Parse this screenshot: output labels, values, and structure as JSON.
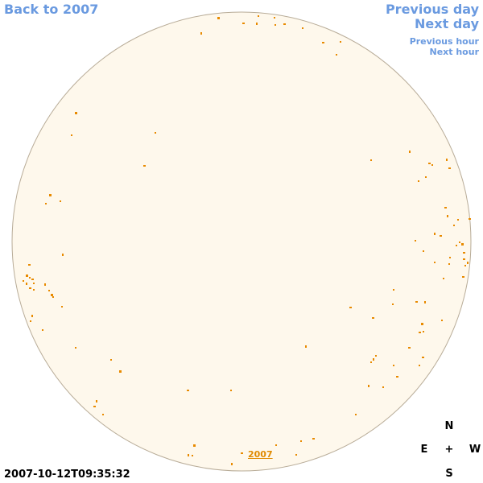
{
  "nav": {
    "back": "Back to 2007",
    "previous_day": "Previous day",
    "next_day": "Next day",
    "previous_hour": "Previous hour",
    "next_hour": "Next hour"
  },
  "disk": {
    "year_label": "2007",
    "fill": "#fef8ec",
    "outline": "#b8ac98",
    "spot_color": "#e88a00"
  },
  "timestamp": "2007-10-12T09:35:32",
  "compass": {
    "n": "N",
    "e": "E",
    "w": "W",
    "s": "S",
    "center": "+"
  },
  "colors": {
    "link": "#6a9ae0",
    "accent": "#e08a00"
  }
}
